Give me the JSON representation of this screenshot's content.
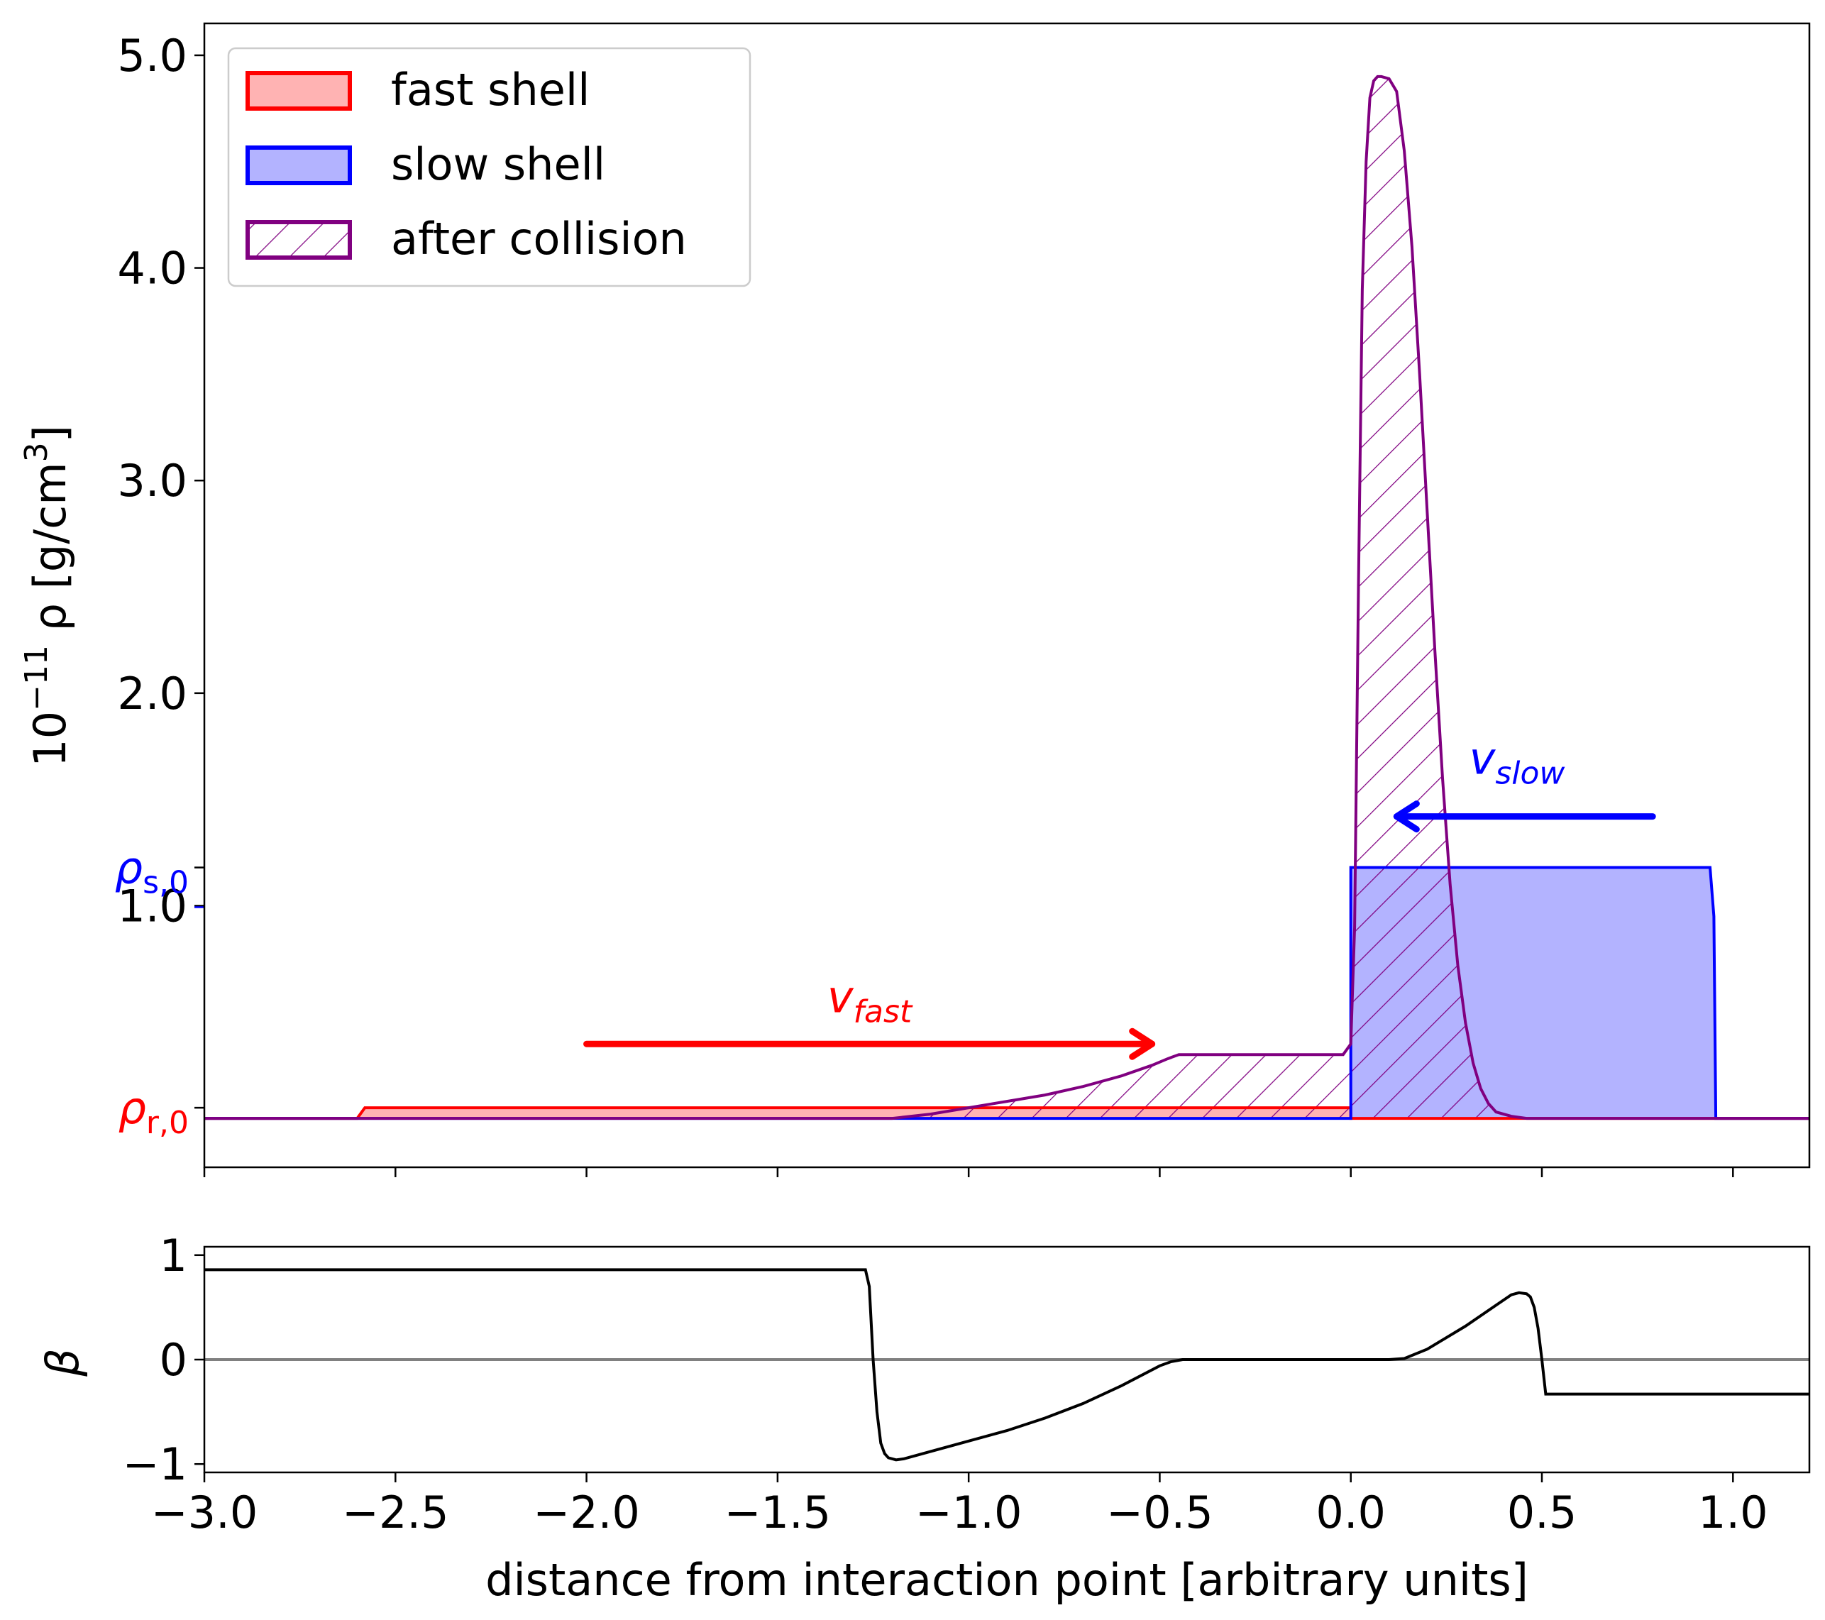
{
  "colors": {
    "fast": "#ff0000",
    "fast_fill": "#ffb3b3",
    "slow": "#0000ff",
    "slow_fill": "#b3b3ff",
    "after": "#800080",
    "beta_line": "#000000",
    "zero_line": "#808080"
  },
  "chart_data": [
    {
      "type": "area",
      "title": "",
      "ylabel": "10⁻¹¹ ρ [g/cm³]",
      "xlim": [
        -3.0,
        1.2
      ],
      "ylim": [
        -0.23,
        5.15
      ],
      "yticks": [
        {
          "value": 1.0,
          "label": "1.0"
        },
        {
          "value": 2.0,
          "label": "2.0"
        },
        {
          "value": 3.0,
          "label": "3.0"
        },
        {
          "value": 4.0,
          "label": "4.0"
        },
        {
          "value": 5.0,
          "label": "5.0"
        }
      ],
      "extra_yticks": [
        {
          "value": 1.18,
          "label": "ρs,0",
          "label_main": "ρ",
          "label_sub": "s,0",
          "color": "#0000ff"
        },
        {
          "value": 0.05,
          "label": "ρr,0",
          "label_main": "ρ",
          "label_sub": "r,0",
          "color": "#ff0000"
        }
      ],
      "legend": {
        "position": "top-left",
        "entries": [
          {
            "label": "fast shell",
            "style": "fast"
          },
          {
            "label": "slow shell",
            "style": "slow"
          },
          {
            "label": "after collision",
            "style": "after"
          }
        ]
      },
      "series": [
        {
          "name": "fast shell",
          "x": [
            -3.0,
            -2.6,
            -2.58,
            0.0,
            0.0,
            1.2
          ],
          "y": [
            0.0,
            0.0,
            0.05,
            0.05,
            0.0,
            0.0
          ]
        },
        {
          "name": "slow shell",
          "x": [
            -3.0,
            0.0,
            0.0,
            0.94,
            0.95,
            0.955,
            1.2
          ],
          "y": [
            0.0,
            0.0,
            1.18,
            1.18,
            0.95,
            0.0,
            0.0
          ]
        },
        {
          "name": "after collision",
          "x": [
            -3.0,
            -1.2,
            -1.1,
            -1.0,
            -0.9,
            -0.8,
            -0.7,
            -0.6,
            -0.52,
            -0.48,
            -0.45,
            -0.2,
            -0.05,
            -0.02,
            0.0,
            0.01,
            0.02,
            0.03,
            0.04,
            0.05,
            0.06,
            0.07,
            0.08,
            0.1,
            0.12,
            0.14,
            0.16,
            0.18,
            0.2,
            0.22,
            0.24,
            0.26,
            0.28,
            0.3,
            0.32,
            0.34,
            0.36,
            0.38,
            0.42,
            0.46,
            0.5,
            1.2
          ],
          "y": [
            0.0,
            0.0,
            0.02,
            0.05,
            0.08,
            0.11,
            0.15,
            0.2,
            0.25,
            0.28,
            0.3,
            0.3,
            0.3,
            0.3,
            0.35,
            0.9,
            2.5,
            3.9,
            4.5,
            4.8,
            4.88,
            4.9,
            4.9,
            4.89,
            4.83,
            4.55,
            4.1,
            3.5,
            2.85,
            2.2,
            1.6,
            1.1,
            0.72,
            0.45,
            0.26,
            0.14,
            0.07,
            0.03,
            0.01,
            0.0,
            0.0,
            0.0
          ]
        }
      ],
      "annotations": [
        {
          "label": "v",
          "label_sub": "fast",
          "text": "v_fast",
          "color": "#ff0000",
          "arrow_from": [
            -2.0,
            0.35
          ],
          "arrow_to": [
            -0.52,
            0.35
          ],
          "text_at": [
            -1.37,
            0.5
          ]
        },
        {
          "label": "v",
          "label_sub": "slow",
          "text": "v_slow",
          "color": "#0000ff",
          "arrow_from": [
            0.79,
            1.42
          ],
          "arrow_to": [
            0.12,
            1.42
          ],
          "text_at": [
            0.31,
            1.62
          ]
        }
      ]
    },
    {
      "type": "line",
      "xlabel": "distance from interaction point [arbitrary units]",
      "ylabel": "β",
      "xlim": [
        -3.0,
        1.2
      ],
      "ylim": [
        -1.08,
        1.08
      ],
      "xticks": [
        {
          "value": -3.0,
          "label": "−3.0"
        },
        {
          "value": -2.5,
          "label": "−2.5"
        },
        {
          "value": -2.0,
          "label": "−2.0"
        },
        {
          "value": -1.5,
          "label": "−1.5"
        },
        {
          "value": -1.0,
          "label": "−1.0"
        },
        {
          "value": -0.5,
          "label": "−0.5"
        },
        {
          "value": 0.0,
          "label": "0.0"
        },
        {
          "value": 0.5,
          "label": "0.5"
        },
        {
          "value": 1.0,
          "label": "1.0"
        }
      ],
      "yticks": [
        {
          "value": -1,
          "label": "−1"
        },
        {
          "value": 0,
          "label": "0"
        },
        {
          "value": 1,
          "label": "1"
        }
      ],
      "hline": 0,
      "series": [
        {
          "name": "β",
          "x": [
            -3.0,
            -1.27,
            -1.26,
            -1.25,
            -1.24,
            -1.23,
            -1.22,
            -1.21,
            -1.19,
            -1.17,
            -1.1,
            -1.0,
            -0.9,
            -0.8,
            -0.7,
            -0.6,
            -0.5,
            -0.47,
            -0.44,
            -0.4,
            -0.2,
            0.0,
            0.1,
            0.14,
            0.2,
            0.3,
            0.38,
            0.42,
            0.44,
            0.46,
            0.47,
            0.48,
            0.49,
            0.5,
            0.51,
            1.2
          ],
          "y": [
            0.86,
            0.86,
            0.7,
            0.0,
            -0.5,
            -0.8,
            -0.9,
            -0.94,
            -0.96,
            -0.95,
            -0.88,
            -0.78,
            -0.68,
            -0.56,
            -0.42,
            -0.25,
            -0.06,
            -0.02,
            0.0,
            0.0,
            0.0,
            0.0,
            0.0,
            0.01,
            0.1,
            0.32,
            0.52,
            0.62,
            0.64,
            0.63,
            0.6,
            0.5,
            0.3,
            0.0,
            -0.33,
            -0.33
          ]
        }
      ]
    }
  ]
}
